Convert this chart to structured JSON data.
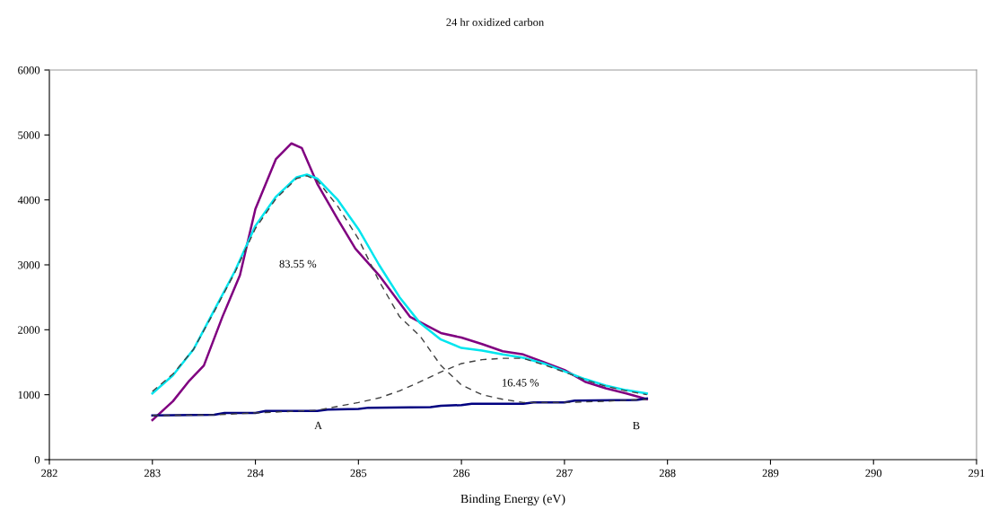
{
  "chart_data": {
    "type": "line",
    "title": "24 hr oxidized carbon",
    "xlabel": "Binding Energy (eV)",
    "xlim": [
      282,
      291
    ],
    "xticks": [
      282,
      283,
      284,
      285,
      286,
      287,
      288,
      289,
      290,
      291
    ],
    "ylim": [
      0,
      6000
    ],
    "yticks": [
      0,
      1000,
      2000,
      3000,
      4000,
      5000,
      6000
    ],
    "grid": false,
    "legend": false,
    "series": [
      {
        "color": "#800080",
        "x": [
          283.0,
          283.2,
          283.35,
          283.5,
          283.68,
          283.85,
          284.0,
          284.2,
          284.35,
          284.45,
          284.6,
          284.8,
          284.97,
          285.2,
          285.5,
          285.8,
          286.0,
          286.2,
          286.4,
          286.6,
          286.8,
          287.0,
          287.2,
          287.4,
          287.6,
          287.8
        ],
        "values": [
          610,
          900,
          1200,
          1450,
          2200,
          2840,
          3860,
          4630,
          4870,
          4800,
          4250,
          3700,
          3250,
          2840,
          2200,
          1950,
          1880,
          1780,
          1670,
          1620,
          1500,
          1380,
          1200,
          1100,
          1020,
          930
        ]
      },
      {
        "color": "#00e5ee",
        "x": [
          283.0,
          283.2,
          283.4,
          283.6,
          283.8,
          284.0,
          284.2,
          284.4,
          284.5,
          284.6,
          284.8,
          285.0,
          285.2,
          285.4,
          285.6,
          285.8,
          286.0,
          286.2,
          286.4,
          286.6,
          286.8,
          287.0,
          287.2,
          287.4,
          287.6,
          287.8
        ],
        "values": [
          1020,
          1300,
          1700,
          2300,
          2900,
          3600,
          4050,
          4350,
          4390,
          4330,
          4000,
          3550,
          3000,
          2500,
          2100,
          1850,
          1720,
          1680,
          1620,
          1570,
          1480,
          1360,
          1240,
          1140,
          1070,
          1020
        ]
      },
      {
        "color": "#000080",
        "x": [
          283.0,
          283.6,
          283.7,
          284.0,
          284.1,
          284.6,
          284.7,
          285.0,
          285.1,
          285.7,
          285.8,
          286.0,
          286.1,
          286.6,
          286.7,
          287.0,
          287.1,
          287.7,
          287.8
        ],
        "values": [
          680,
          690,
          720,
          720,
          750,
          750,
          770,
          780,
          800,
          810,
          830,
          840,
          860,
          860,
          880,
          880,
          910,
          920,
          940
        ]
      },
      {
        "color": "#404040",
        "line_style": "dashed",
        "x": [
          283.0,
          283.2,
          283.4,
          283.6,
          283.8,
          284.0,
          284.2,
          284.4,
          284.5,
          284.6,
          284.8,
          285.0,
          285.2,
          285.4,
          285.6,
          285.8,
          286.0,
          286.2,
          286.4,
          286.6,
          287.0,
          287.4,
          287.8
        ],
        "values": [
          1050,
          1320,
          1700,
          2280,
          2880,
          3560,
          4020,
          4330,
          4370,
          4300,
          3900,
          3400,
          2750,
          2200,
          1900,
          1450,
          1150,
          1000,
          930,
          880,
          880,
          900,
          930
        ]
      },
      {
        "color": "#404040",
        "line_style": "dashed",
        "x": [
          283.0,
          283.6,
          284.0,
          284.6,
          284.8,
          285.0,
          285.2,
          285.4,
          285.6,
          285.8,
          286.0,
          286.2,
          286.4,
          286.6,
          286.8,
          287.0,
          287.2,
          287.4,
          287.6,
          287.8
        ],
        "values": [
          680,
          690,
          720,
          760,
          820,
          880,
          950,
          1060,
          1200,
          1350,
          1480,
          1540,
          1560,
          1560,
          1460,
          1350,
          1230,
          1130,
          1060,
          1000
        ]
      }
    ],
    "annotations": [
      "83.55 %",
      "16.45 %",
      "A",
      "B"
    ]
  }
}
